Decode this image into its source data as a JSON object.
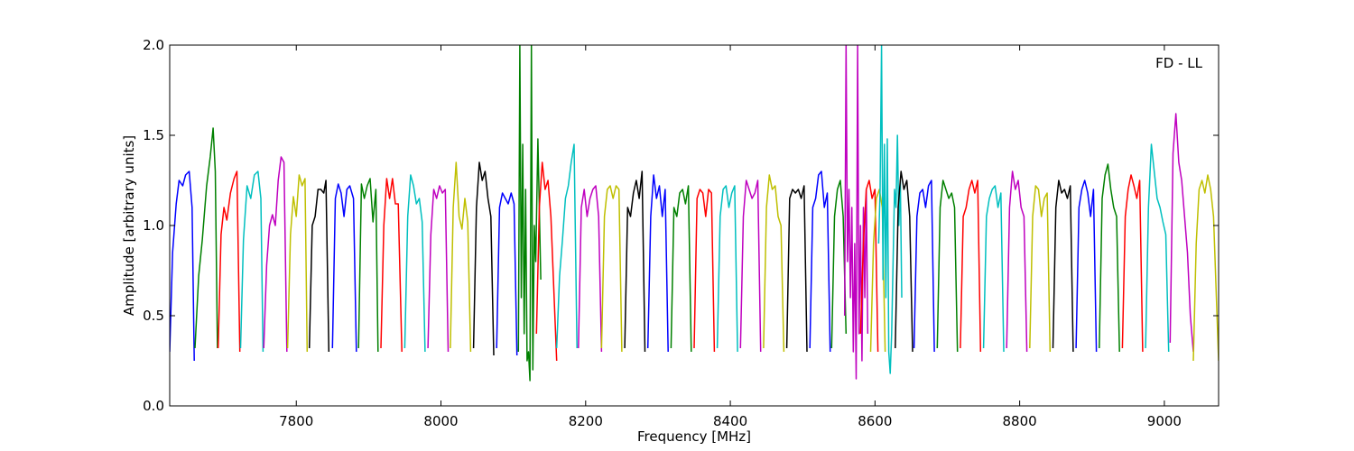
{
  "chart_data": {
    "type": "line",
    "annotation": "FD - LL",
    "xlabel": "Frequency [MHz]",
    "ylabel": "Amplitude [arbitrary units]",
    "xlim": [
      7625,
      9075
    ],
    "ylim": [
      0,
      2.0
    ],
    "xticks": [
      {
        "value": 7800,
        "label": "7800"
      },
      {
        "value": 8000,
        "label": "8000"
      },
      {
        "value": 8200,
        "label": "8200"
      },
      {
        "value": 8400,
        "label": "8400"
      },
      {
        "value": 8600,
        "label": "8600"
      },
      {
        "value": 8800,
        "label": "8800"
      },
      {
        "value": 9000,
        "label": "9000"
      }
    ],
    "yticks": [
      {
        "value": 0.0,
        "label": "0.0"
      },
      {
        "value": 0.5,
        "label": "0.5"
      },
      {
        "value": 1.0,
        "label": "1.0"
      },
      {
        "value": 1.5,
        "label": "1.5"
      },
      {
        "value": 2.0,
        "label": "2.0"
      }
    ],
    "grid": false,
    "legend": "none",
    "colors": [
      "#0000ff",
      "#008000",
      "#ff0000",
      "#00bfbf",
      "#bf00bf",
      "#bfbf00",
      "#000000"
    ],
    "series": [
      {
        "color": "#0000ff",
        "x": [
          7625,
          7629,
          7634,
          7638,
          7643,
          7647,
          7652,
          7656,
          7659
        ],
        "y": [
          0.3,
          0.85,
          1.12,
          1.25,
          1.22,
          1.28,
          1.3,
          1.1,
          0.25
        ]
      },
      {
        "color": "#008000",
        "x": [
          7660,
          7665,
          7670,
          7676,
          7681,
          7685,
          7688,
          7691
        ],
        "y": [
          0.32,
          0.72,
          0.92,
          1.22,
          1.38,
          1.54,
          1.3,
          0.32
        ]
      },
      {
        "color": "#ff0000",
        "x": [
          7692,
          7696,
          7700,
          7704,
          7709,
          7714,
          7718,
          7722
        ],
        "y": [
          0.32,
          0.95,
          1.1,
          1.03,
          1.18,
          1.26,
          1.3,
          0.3
        ]
      },
      {
        "color": "#00bfbf",
        "x": [
          7723,
          7727,
          7732,
          7737,
          7742,
          7747,
          7751,
          7754
        ],
        "y": [
          0.32,
          0.92,
          1.22,
          1.15,
          1.28,
          1.3,
          1.15,
          0.3
        ]
      },
      {
        "color": "#bf00bf",
        "x": [
          7755,
          7759,
          7763,
          7767,
          7771,
          7775,
          7779,
          7783,
          7787
        ],
        "y": [
          0.32,
          0.78,
          1.0,
          1.06,
          1.0,
          1.25,
          1.38,
          1.35,
          0.3
        ]
      },
      {
        "color": "#bfbf00",
        "x": [
          7788,
          7792,
          7796,
          7800,
          7804,
          7808,
          7812,
          7815
        ],
        "y": [
          0.32,
          0.95,
          1.16,
          1.05,
          1.28,
          1.22,
          1.26,
          0.3
        ]
      },
      {
        "color": "#000000",
        "x": [
          7818,
          7822,
          7826,
          7830,
          7834,
          7838,
          7841,
          7845
        ],
        "y": [
          0.32,
          1.0,
          1.05,
          1.2,
          1.2,
          1.18,
          1.25,
          0.3
        ]
      },
      {
        "color": "#0000ff",
        "x": [
          7850,
          7854,
          7858,
          7862,
          7866,
          7870,
          7874,
          7879,
          7883
        ],
        "y": [
          0.32,
          1.15,
          1.23,
          1.18,
          1.05,
          1.2,
          1.22,
          1.15,
          0.3
        ]
      },
      {
        "color": "#008000",
        "x": [
          7886,
          7890,
          7894,
          7898,
          7902,
          7906,
          7910,
          7913
        ],
        "y": [
          0.32,
          1.23,
          1.15,
          1.22,
          1.26,
          1.02,
          1.2,
          0.3
        ]
      },
      {
        "color": "#ff0000",
        "x": [
          7917,
          7921,
          7925,
          7929,
          7933,
          7937,
          7941,
          7946
        ],
        "y": [
          0.32,
          1.0,
          1.26,
          1.15,
          1.26,
          1.12,
          1.12,
          0.3
        ]
      },
      {
        "color": "#00bfbf",
        "x": [
          7950,
          7954,
          7958,
          7962,
          7966,
          7970,
          7974,
          7978
        ],
        "y": [
          0.32,
          1.05,
          1.28,
          1.22,
          1.12,
          1.15,
          1.02,
          0.3
        ]
      },
      {
        "color": "#bf00bf",
        "x": [
          7982,
          7986,
          7990,
          7994,
          7998,
          8002,
          8006,
          8010
        ],
        "y": [
          0.32,
          0.95,
          1.2,
          1.15,
          1.22,
          1.18,
          1.2,
          0.3
        ]
      },
      {
        "color": "#bfbf00",
        "x": [
          8013,
          8017,
          8021,
          8025,
          8029,
          8033,
          8037,
          8041
        ],
        "y": [
          0.32,
          1.1,
          1.35,
          1.05,
          0.98,
          1.15,
          1.02,
          0.3
        ]
      },
      {
        "color": "#000000",
        "x": [
          8045,
          8049,
          8053,
          8057,
          8061,
          8065,
          8069,
          8073
        ],
        "y": [
          0.32,
          1.1,
          1.35,
          1.25,
          1.3,
          1.15,
          1.05,
          0.28
        ]
      },
      {
        "color": "#0000ff",
        "x": [
          8077,
          8081,
          8085,
          8089,
          8093,
          8097,
          8101,
          8105
        ],
        "y": [
          0.32,
          1.1,
          1.18,
          1.15,
          1.12,
          1.18,
          1.12,
          0.28
        ]
      },
      {
        "color": "#008000",
        "x": [
          8107,
          8109,
          8111,
          8113,
          8115,
          8117,
          8119,
          8121,
          8123,
          8125,
          8127,
          8129,
          8131,
          8134,
          8138
        ],
        "y": [
          0.3,
          2.0,
          0.6,
          1.45,
          0.4,
          1.2,
          0.25,
          0.3,
          0.14,
          2.0,
          0.2,
          1.0,
          0.8,
          1.48,
          0.7
        ]
      },
      {
        "color": "#ff0000",
        "x": [
          8132,
          8136,
          8140,
          8144,
          8148,
          8152,
          8156,
          8160
        ],
        "y": [
          0.4,
          1.1,
          1.35,
          1.2,
          1.25,
          1.05,
          0.65,
          0.25
        ]
      },
      {
        "color": "#00bfbf",
        "x": [
          8160,
          8164,
          8168,
          8172,
          8176,
          8180,
          8184,
          8188
        ],
        "y": [
          0.32,
          0.72,
          0.92,
          1.15,
          1.22,
          1.35,
          1.45,
          0.32
        ]
      },
      {
        "color": "#bf00bf",
        "x": [
          8190,
          8194,
          8198,
          8202,
          8206,
          8210,
          8214,
          8218,
          8222
        ],
        "y": [
          0.32,
          1.1,
          1.2,
          1.05,
          1.15,
          1.2,
          1.22,
          1.05,
          0.3
        ]
      },
      {
        "color": "#bfbf00",
        "x": [
          8222,
          8226,
          8230,
          8234,
          8238,
          8242,
          8246,
          8250
        ],
        "y": [
          0.32,
          1.05,
          1.2,
          1.22,
          1.15,
          1.22,
          1.2,
          0.3
        ]
      },
      {
        "color": "#000000",
        "x": [
          8254,
          8258,
          8262,
          8266,
          8270,
          8274,
          8278,
          8282
        ],
        "y": [
          0.32,
          1.1,
          1.05,
          1.18,
          1.25,
          1.15,
          1.3,
          0.3
        ]
      },
      {
        "color": "#0000ff",
        "x": [
          8286,
          8290,
          8294,
          8298,
          8302,
          8306,
          8310,
          8314
        ],
        "y": [
          0.32,
          1.05,
          1.28,
          1.15,
          1.22,
          1.05,
          1.2,
          0.3
        ]
      },
      {
        "color": "#008000",
        "x": [
          8318,
          8322,
          8326,
          8330,
          8334,
          8338,
          8342,
          8346
        ],
        "y": [
          0.32,
          1.1,
          1.05,
          1.18,
          1.2,
          1.12,
          1.22,
          0.3
        ]
      },
      {
        "color": "#ff0000",
        "x": [
          8350,
          8354,
          8358,
          8362,
          8366,
          8370,
          8374,
          8378
        ],
        "y": [
          0.32,
          1.15,
          1.2,
          1.18,
          1.05,
          1.2,
          1.18,
          0.3
        ]
      },
      {
        "color": "#00bfbf",
        "x": [
          8382,
          8386,
          8390,
          8394,
          8398,
          8402,
          8406,
          8410
        ],
        "y": [
          0.32,
          1.05,
          1.2,
          1.22,
          1.1,
          1.18,
          1.22,
          0.3
        ]
      },
      {
        "color": "#bf00bf",
        "x": [
          8414,
          8418,
          8422,
          8426,
          8430,
          8434,
          8438,
          8442
        ],
        "y": [
          0.32,
          1.05,
          1.25,
          1.2,
          1.15,
          1.18,
          1.25,
          0.3
        ]
      },
      {
        "color": "#bfbf00",
        "x": [
          8446,
          8450,
          8454,
          8458,
          8462,
          8466,
          8470,
          8474
        ],
        "y": [
          0.32,
          1.1,
          1.28,
          1.2,
          1.22,
          1.05,
          1.0,
          0.3
        ]
      },
      {
        "color": "#000000",
        "x": [
          8478,
          8482,
          8486,
          8490,
          8494,
          8498,
          8502,
          8506
        ],
        "y": [
          0.32,
          1.15,
          1.2,
          1.18,
          1.2,
          1.15,
          1.22,
          0.3
        ]
      },
      {
        "color": "#0000ff",
        "x": [
          8510,
          8514,
          8518,
          8522,
          8526,
          8530,
          8534,
          8538
        ],
        "y": [
          0.32,
          1.1,
          1.15,
          1.28,
          1.3,
          1.1,
          1.18,
          0.3
        ]
      },
      {
        "color": "#008000",
        "x": [
          8540,
          8544,
          8548,
          8552,
          8556,
          8560
        ],
        "y": [
          0.32,
          1.05,
          1.2,
          1.25,
          1.05,
          0.4
        ]
      },
      {
        "color": "#bf00bf",
        "x": [
          8558,
          8560,
          8562,
          8564,
          8566,
          8568,
          8570,
          8572,
          8574,
          8576,
          8578,
          8580,
          8582,
          8584,
          8586,
          8588,
          8590
        ],
        "y": [
          0.5,
          2.0,
          0.8,
          1.2,
          0.6,
          1.1,
          0.3,
          0.9,
          0.15,
          2.0,
          0.4,
          1.0,
          0.25,
          1.1,
          0.6,
          1.2,
          0.4
        ]
      },
      {
        "color": "#ff0000",
        "x": [
          8580,
          8584,
          8588,
          8592,
          8596,
          8600,
          8604
        ],
        "y": [
          0.4,
          0.9,
          1.2,
          1.25,
          1.15,
          1.2,
          0.3
        ]
      },
      {
        "color": "#bfbf00",
        "x": [
          8594,
          8598,
          8602,
          8606,
          8610,
          8614
        ],
        "y": [
          0.3,
          0.9,
          1.15,
          1.2,
          1.1,
          0.3
        ]
      },
      {
        "color": "#00bfbf",
        "x": [
          8605,
          8607,
          8609,
          8611,
          8613,
          8615,
          8617,
          8619,
          8621,
          8623,
          8625,
          8627,
          8629,
          8631,
          8633,
          8635,
          8637
        ],
        "y": [
          0.9,
          1.2,
          2.0,
          0.7,
          1.45,
          0.6,
          1.48,
          0.3,
          0.18,
          0.4,
          0.8,
          1.2,
          1.1,
          1.5,
          1.0,
          1.25,
          0.6
        ]
      },
      {
        "color": "#000000",
        "x": [
          8628,
          8632,
          8636,
          8640,
          8644,
          8648,
          8652
        ],
        "y": [
          0.32,
          1.1,
          1.3,
          1.2,
          1.25,
          1.05,
          0.3
        ]
      },
      {
        "color": "#0000ff",
        "x": [
          8654,
          8658,
          8662,
          8666,
          8670,
          8674,
          8678,
          8682
        ],
        "y": [
          0.32,
          1.05,
          1.18,
          1.2,
          1.1,
          1.22,
          1.25,
          0.3
        ]
      },
      {
        "color": "#008000",
        "x": [
          8686,
          8690,
          8694,
          8698,
          8702,
          8706,
          8710,
          8714
        ],
        "y": [
          0.32,
          1.1,
          1.25,
          1.2,
          1.15,
          1.18,
          1.1,
          0.3
        ]
      },
      {
        "color": "#ff0000",
        "x": [
          8718,
          8722,
          8726,
          8730,
          8734,
          8738,
          8742,
          8746
        ],
        "y": [
          0.32,
          1.05,
          1.1,
          1.2,
          1.25,
          1.18,
          1.25,
          0.3
        ]
      },
      {
        "color": "#00bfbf",
        "x": [
          8750,
          8754,
          8758,
          8762,
          8766,
          8770,
          8774,
          8778
        ],
        "y": [
          0.32,
          1.05,
          1.15,
          1.2,
          1.22,
          1.1,
          1.18,
          0.3
        ]
      },
      {
        "color": "#bf00bf",
        "x": [
          8782,
          8786,
          8790,
          8794,
          8798,
          8802,
          8806,
          8810
        ],
        "y": [
          0.32,
          1.1,
          1.3,
          1.2,
          1.25,
          1.1,
          1.05,
          0.3
        ]
      },
      {
        "color": "#bfbf00",
        "x": [
          8814,
          8818,
          8822,
          8826,
          8830,
          8834,
          8838,
          8842
        ],
        "y": [
          0.32,
          1.05,
          1.22,
          1.2,
          1.05,
          1.15,
          1.18,
          0.3
        ]
      },
      {
        "color": "#000000",
        "x": [
          8846,
          8850,
          8854,
          8858,
          8862,
          8866,
          8870,
          8874
        ],
        "y": [
          0.32,
          1.1,
          1.25,
          1.18,
          1.2,
          1.15,
          1.22,
          0.3
        ]
      },
      {
        "color": "#0000ff",
        "x": [
          8878,
          8882,
          8886,
          8890,
          8894,
          8898,
          8902,
          8906
        ],
        "y": [
          0.32,
          1.1,
          1.2,
          1.25,
          1.18,
          1.05,
          1.2,
          0.3
        ]
      },
      {
        "color": "#008000",
        "x": [
          8910,
          8914,
          8918,
          8922,
          8926,
          8930,
          8934,
          8938
        ],
        "y": [
          0.32,
          1.15,
          1.28,
          1.34,
          1.2,
          1.1,
          1.05,
          0.3
        ]
      },
      {
        "color": "#ff0000",
        "x": [
          8942,
          8946,
          8950,
          8954,
          8958,
          8962,
          8966,
          8970
        ],
        "y": [
          0.32,
          1.05,
          1.2,
          1.28,
          1.22,
          1.15,
          1.25,
          0.3
        ]
      },
      {
        "color": "#00bfbf",
        "x": [
          8974,
          8978,
          8982,
          8986,
          8990,
          8994,
          8998,
          9002,
          9006
        ],
        "y": [
          0.32,
          1.1,
          1.45,
          1.3,
          1.15,
          1.1,
          1.02,
          0.95,
          0.3
        ]
      },
      {
        "color": "#bf00bf",
        "x": [
          9008,
          9012,
          9016,
          9020,
          9024,
          9028,
          9032,
          9036,
          9040
        ],
        "y": [
          0.35,
          1.4,
          1.62,
          1.35,
          1.25,
          1.05,
          0.85,
          0.5,
          0.3
        ]
      },
      {
        "color": "#bfbf00",
        "x": [
          9040,
          9044,
          9048,
          9052,
          9056,
          9060,
          9064,
          9068,
          9075
        ],
        "y": [
          0.25,
          0.9,
          1.2,
          1.25,
          1.18,
          1.28,
          1.2,
          1.05,
          0.25
        ]
      }
    ]
  }
}
